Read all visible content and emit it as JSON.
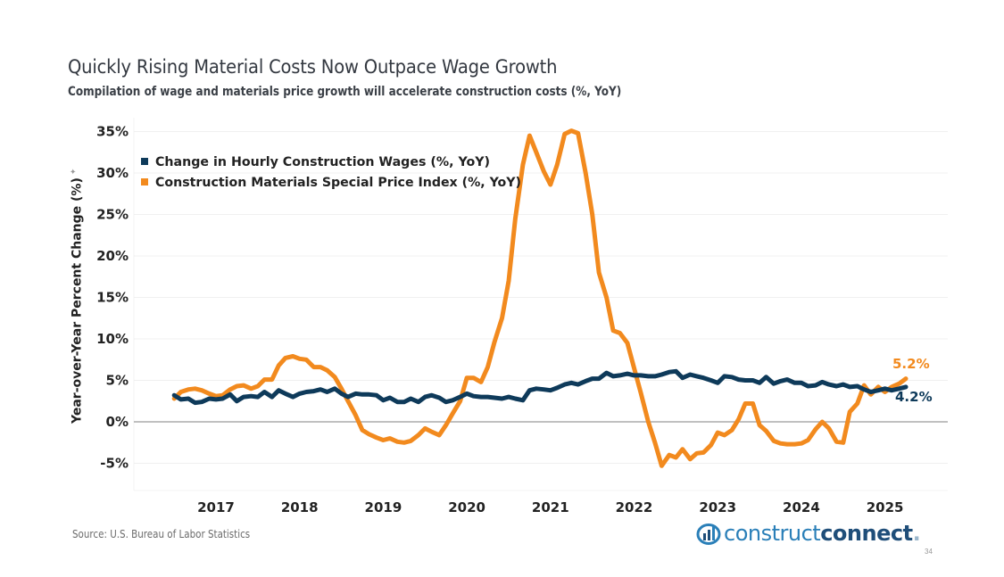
{
  "header": {
    "title": "Quickly Rising Material Costs Now Outpace Wage Growth",
    "subtitle": "Compilation of wage and materials price growth will accelerate construction costs (%, YoY)"
  },
  "footer": {
    "source": "Source: U.S. Bureau of Labor Statistics",
    "logo_light": "construct",
    "logo_bold": "connect",
    "logo_dot": ".",
    "page_number": "34"
  },
  "colors": {
    "wages": "#0e3a5a",
    "materials": "#f28a1e",
    "zero_line": "#9a9a9a",
    "grid": "#f0f0f0"
  },
  "chart_data": {
    "type": "line",
    "title": "Quickly Rising Material Costs Now Outpace Wage Growth",
    "subtitle": "Compilation of wage and materials price growth will accelerate construction costs (%, YoY)",
    "xlabel": "",
    "ylabel": "Year-over-Year Percent Change (%)",
    "ylim": [
      -8,
      37
    ],
    "xlim": [
      2016.0,
      2025.9
    ],
    "yticks": [
      35,
      30,
      25,
      20,
      15,
      10,
      5,
      0,
      -5
    ],
    "ytick_labels": [
      "35%",
      "30%",
      "25%",
      "20%",
      "15%",
      "10%",
      "5%",
      "0%",
      "-5%"
    ],
    "xticks": [
      2017,
      2018,
      2019,
      2020,
      2021,
      2022,
      2023,
      2024,
      2025
    ],
    "xtick_labels": [
      "2017",
      "2018",
      "2019",
      "2020",
      "2021",
      "2022",
      "2023",
      "2024",
      "2025"
    ],
    "grid": true,
    "legend_position": "top-left",
    "series": [
      {
        "name": "Change in Hourly Construction Wages (%,  YoY)",
        "color": "#0e3a5a",
        "end_label": "4.2%",
        "points": [
          [
            2016.5,
            3.2
          ],
          [
            2016.58,
            2.7
          ],
          [
            2016.67,
            2.8
          ],
          [
            2016.75,
            2.3
          ],
          [
            2016.83,
            2.4
          ],
          [
            2016.92,
            2.8
          ],
          [
            2017.0,
            2.7
          ],
          [
            2017.08,
            2.8
          ],
          [
            2017.17,
            3.3
          ],
          [
            2017.25,
            2.5
          ],
          [
            2017.33,
            3.0
          ],
          [
            2017.42,
            3.1
          ],
          [
            2017.5,
            3.0
          ],
          [
            2017.58,
            3.6
          ],
          [
            2017.67,
            3.0
          ],
          [
            2017.75,
            3.8
          ],
          [
            2017.83,
            3.4
          ],
          [
            2017.92,
            3.0
          ],
          [
            2018.0,
            3.4
          ],
          [
            2018.08,
            3.6
          ],
          [
            2018.17,
            3.7
          ],
          [
            2018.25,
            3.9
          ],
          [
            2018.33,
            3.6
          ],
          [
            2018.42,
            4.0
          ],
          [
            2018.5,
            3.4
          ],
          [
            2018.58,
            3.0
          ],
          [
            2018.67,
            3.4
          ],
          [
            2018.75,
            3.3
          ],
          [
            2018.83,
            3.3
          ],
          [
            2018.92,
            3.2
          ],
          [
            2019.0,
            2.6
          ],
          [
            2019.08,
            2.9
          ],
          [
            2019.17,
            2.4
          ],
          [
            2019.25,
            2.4
          ],
          [
            2019.33,
            2.8
          ],
          [
            2019.42,
            2.4
          ],
          [
            2019.5,
            3.0
          ],
          [
            2019.58,
            3.2
          ],
          [
            2019.67,
            2.9
          ],
          [
            2019.75,
            2.4
          ],
          [
            2019.83,
            2.6
          ],
          [
            2019.92,
            3.0
          ],
          [
            2020.0,
            3.4
          ],
          [
            2020.08,
            3.1
          ],
          [
            2020.17,
            3.0
          ],
          [
            2020.25,
            3.0
          ],
          [
            2020.33,
            2.9
          ],
          [
            2020.42,
            2.8
          ],
          [
            2020.5,
            3.0
          ],
          [
            2020.58,
            2.8
          ],
          [
            2020.67,
            2.6
          ],
          [
            2020.75,
            3.8
          ],
          [
            2020.83,
            4.0
          ],
          [
            2020.92,
            3.9
          ],
          [
            2021.0,
            3.8
          ],
          [
            2021.08,
            4.1
          ],
          [
            2021.17,
            4.5
          ],
          [
            2021.25,
            4.7
          ],
          [
            2021.33,
            4.5
          ],
          [
            2021.42,
            4.9
          ],
          [
            2021.5,
            5.2
          ],
          [
            2021.58,
            5.2
          ],
          [
            2021.67,
            5.9
          ],
          [
            2021.75,
            5.5
          ],
          [
            2021.83,
            5.6
          ],
          [
            2021.92,
            5.8
          ],
          [
            2022.0,
            5.6
          ],
          [
            2022.08,
            5.6
          ],
          [
            2022.17,
            5.5
          ],
          [
            2022.25,
            5.5
          ],
          [
            2022.33,
            5.7
          ],
          [
            2022.42,
            6.0
          ],
          [
            2022.5,
            6.1
          ],
          [
            2022.58,
            5.3
          ],
          [
            2022.67,
            5.7
          ],
          [
            2022.75,
            5.5
          ],
          [
            2022.83,
            5.3
          ],
          [
            2022.92,
            5.0
          ],
          [
            2023.0,
            4.7
          ],
          [
            2023.08,
            5.5
          ],
          [
            2023.17,
            5.4
          ],
          [
            2023.25,
            5.1
          ],
          [
            2023.33,
            5.0
          ],
          [
            2023.42,
            5.0
          ],
          [
            2023.5,
            4.7
          ],
          [
            2023.58,
            5.4
          ],
          [
            2023.67,
            4.6
          ],
          [
            2023.75,
            4.9
          ],
          [
            2023.83,
            5.1
          ],
          [
            2023.92,
            4.7
          ],
          [
            2024.0,
            4.7
          ],
          [
            2024.08,
            4.3
          ],
          [
            2024.17,
            4.4
          ],
          [
            2024.25,
            4.8
          ],
          [
            2024.33,
            4.5
          ],
          [
            2024.42,
            4.3
          ],
          [
            2024.5,
            4.5
          ],
          [
            2024.58,
            4.2
          ],
          [
            2024.67,
            4.3
          ],
          [
            2024.75,
            3.9
          ],
          [
            2024.83,
            3.6
          ],
          [
            2024.92,
            3.8
          ],
          [
            2025.0,
            4.0
          ],
          [
            2025.08,
            3.8
          ],
          [
            2025.17,
            4.0
          ],
          [
            2025.25,
            4.2
          ]
        ]
      },
      {
        "name": "Construction Materials Special Price Index (%,  YoY)",
        "color": "#f28a1e",
        "end_label": "5.2%",
        "points": [
          [
            2016.5,
            2.8
          ],
          [
            2016.58,
            3.6
          ],
          [
            2016.67,
            3.9
          ],
          [
            2016.75,
            4.0
          ],
          [
            2016.83,
            3.8
          ],
          [
            2016.92,
            3.4
          ],
          [
            2017.0,
            3.1
          ],
          [
            2017.08,
            3.2
          ],
          [
            2017.17,
            3.9
          ],
          [
            2017.25,
            4.3
          ],
          [
            2017.33,
            4.4
          ],
          [
            2017.42,
            4.0
          ],
          [
            2017.5,
            4.3
          ],
          [
            2017.58,
            5.1
          ],
          [
            2017.67,
            5.1
          ],
          [
            2017.75,
            6.8
          ],
          [
            2017.83,
            7.7
          ],
          [
            2017.92,
            7.9
          ],
          [
            2018.0,
            7.6
          ],
          [
            2018.08,
            7.5
          ],
          [
            2018.17,
            6.6
          ],
          [
            2018.25,
            6.6
          ],
          [
            2018.33,
            6.2
          ],
          [
            2018.42,
            5.4
          ],
          [
            2018.5,
            4.0
          ],
          [
            2018.58,
            2.5
          ],
          [
            2018.67,
            0.8
          ],
          [
            2018.75,
            -1.0
          ],
          [
            2018.83,
            -1.5
          ],
          [
            2018.92,
            -1.9
          ],
          [
            2019.0,
            -2.2
          ],
          [
            2019.08,
            -2.0
          ],
          [
            2019.17,
            -2.4
          ],
          [
            2019.25,
            -2.5
          ],
          [
            2019.33,
            -2.3
          ],
          [
            2019.42,
            -1.6
          ],
          [
            2019.5,
            -0.8
          ],
          [
            2019.58,
            -1.2
          ],
          [
            2019.67,
            -1.6
          ],
          [
            2019.75,
            -0.4
          ],
          [
            2019.83,
            1.0
          ],
          [
            2019.92,
            2.5
          ],
          [
            2020.0,
            5.3
          ],
          [
            2020.08,
            5.3
          ],
          [
            2020.17,
            4.8
          ],
          [
            2020.25,
            6.6
          ],
          [
            2020.33,
            9.6
          ],
          [
            2020.42,
            12.5
          ],
          [
            2020.5,
            17.0
          ],
          [
            2020.58,
            24.5
          ],
          [
            2020.67,
            31.0
          ],
          [
            2020.75,
            34.5
          ],
          [
            2020.83,
            32.5
          ],
          [
            2020.92,
            30.2
          ],
          [
            2021.0,
            28.6
          ],
          [
            2021.08,
            31.0
          ],
          [
            2021.17,
            34.7
          ],
          [
            2021.25,
            35.1
          ],
          [
            2021.33,
            34.8
          ],
          [
            2021.42,
            30.0
          ],
          [
            2021.5,
            25.0
          ],
          [
            2021.58,
            18.0
          ],
          [
            2021.67,
            15.0
          ],
          [
            2021.75,
            11.0
          ],
          [
            2021.83,
            10.7
          ],
          [
            2021.92,
            9.5
          ],
          [
            2022.0,
            6.5
          ],
          [
            2022.08,
            3.5
          ],
          [
            2022.17,
            0.0
          ],
          [
            2022.25,
            -2.5
          ],
          [
            2022.33,
            -5.3
          ],
          [
            2022.42,
            -4.0
          ],
          [
            2022.5,
            -4.3
          ],
          [
            2022.58,
            -3.3
          ],
          [
            2022.67,
            -4.5
          ],
          [
            2022.75,
            -3.8
          ],
          [
            2022.83,
            -3.7
          ],
          [
            2022.92,
            -2.8
          ],
          [
            2023.0,
            -1.3
          ],
          [
            2023.08,
            -1.6
          ],
          [
            2023.17,
            -1.0
          ],
          [
            2023.25,
            0.3
          ],
          [
            2023.33,
            2.2
          ],
          [
            2023.42,
            2.2
          ],
          [
            2023.5,
            -0.4
          ],
          [
            2023.58,
            -1.1
          ],
          [
            2023.67,
            -2.3
          ],
          [
            2023.75,
            -2.6
          ],
          [
            2023.83,
            -2.7
          ],
          [
            2023.92,
            -2.7
          ],
          [
            2024.0,
            -2.6
          ],
          [
            2024.08,
            -2.2
          ],
          [
            2024.17,
            -0.9
          ],
          [
            2024.25,
            0.0
          ],
          [
            2024.33,
            -0.8
          ],
          [
            2024.42,
            -2.4
          ],
          [
            2024.5,
            -2.5
          ],
          [
            2024.58,
            1.2
          ],
          [
            2024.67,
            2.2
          ],
          [
            2024.75,
            4.4
          ],
          [
            2024.83,
            3.3
          ],
          [
            2024.92,
            4.2
          ],
          [
            2025.0,
            3.6
          ],
          [
            2025.08,
            4.2
          ],
          [
            2025.17,
            4.6
          ],
          [
            2025.25,
            5.2
          ]
        ]
      }
    ]
  }
}
